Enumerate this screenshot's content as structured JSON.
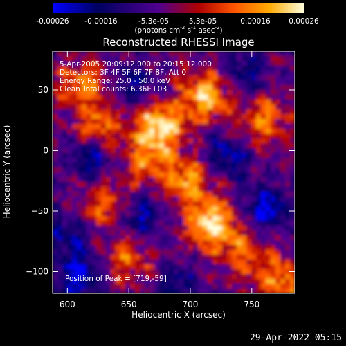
{
  "colorbar": {
    "tick_labels": [
      "-0.00026",
      "-0.00016",
      "-5.3e-05",
      "5.3e-05",
      "0.00016",
      "0.00026"
    ],
    "tick_values": [
      -0.00026,
      -0.00016,
      -5.3e-05,
      5.3e-05,
      0.00016,
      0.00026
    ],
    "range": [
      -0.00026,
      0.00026
    ],
    "units_parts": [
      "(photons cm",
      "-2",
      " s",
      "-1",
      " asec",
      "-2",
      ")"
    ],
    "colors": [
      "#0000ff",
      "#000060",
      "#500090",
      "#b00000",
      "#ff5500",
      "#ffaa00",
      "#ffffe0"
    ]
  },
  "chart_data": {
    "type": "heatmap",
    "title": "Reconstructed RHESSI Image",
    "xlabel": "Heliocentric X (arcsec)",
    "ylabel": "Heliocentric Y (arcsec)",
    "xlim": [
      588,
      785
    ],
    "ylim": [
      -118,
      82
    ],
    "xticks": [
      600,
      650,
      700,
      750
    ],
    "yticks": [
      50,
      0,
      -50,
      -100
    ],
    "xtick_labels": [
      "600",
      "650",
      "700",
      "750"
    ],
    "ytick_labels": [
      "50",
      "0",
      "−50",
      "−100"
    ],
    "peak": [
      719,
      -59
    ],
    "bright_regions": [
      {
        "x": 675,
        "y": 20,
        "w": 1.0
      },
      {
        "x": 718,
        "y": -62,
        "w": 1.0
      },
      {
        "x": 712,
        "y": 45,
        "w": 0.85
      },
      {
        "x": 700,
        "y": -25,
        "w": 0.7
      },
      {
        "x": 625,
        "y": 15,
        "w": 0.7
      },
      {
        "x": 612,
        "y": 55,
        "w": 0.6
      },
      {
        "x": 760,
        "y": 25,
        "w": 0.6
      },
      {
        "x": 630,
        "y": -45,
        "w": 0.55
      },
      {
        "x": 665,
        "y": -10,
        "w": 0.55
      },
      {
        "x": 775,
        "y": -108,
        "w": 0.65
      },
      {
        "x": 745,
        "y": -85,
        "w": 0.5
      },
      {
        "x": 650,
        "y": -90,
        "w": 0.5
      }
    ],
    "dim_regions": [
      {
        "x": 620,
        "y": -5,
        "w": 1.0
      },
      {
        "x": 610,
        "y": -105,
        "w": 1.0
      },
      {
        "x": 660,
        "y": -55,
        "w": 0.8
      },
      {
        "x": 730,
        "y": -5,
        "w": 0.8
      },
      {
        "x": 762,
        "y": -48,
        "w": 1.0
      },
      {
        "x": 745,
        "y": 65,
        "w": 0.6
      },
      {
        "x": 655,
        "y": 55,
        "w": 0.6
      },
      {
        "x": 600,
        "y": -70,
        "w": 0.7
      },
      {
        "x": 690,
        "y": -110,
        "w": 0.6
      }
    ]
  },
  "info": {
    "time_range": "5-Apr-2005 20:09:12.000 to 20:15:12.000",
    "detectors": "Detectors: 3F 4F 5F 6F 7F 8F, Att 0",
    "energy": "Energy Range: 25.0 - 50.0 keV",
    "clean": "Clean     Total counts: 6.36E+03",
    "peak_text": "Position of Peak = [719,-59]"
  },
  "footer": {
    "date": "29-Apr-2022 05:15"
  }
}
